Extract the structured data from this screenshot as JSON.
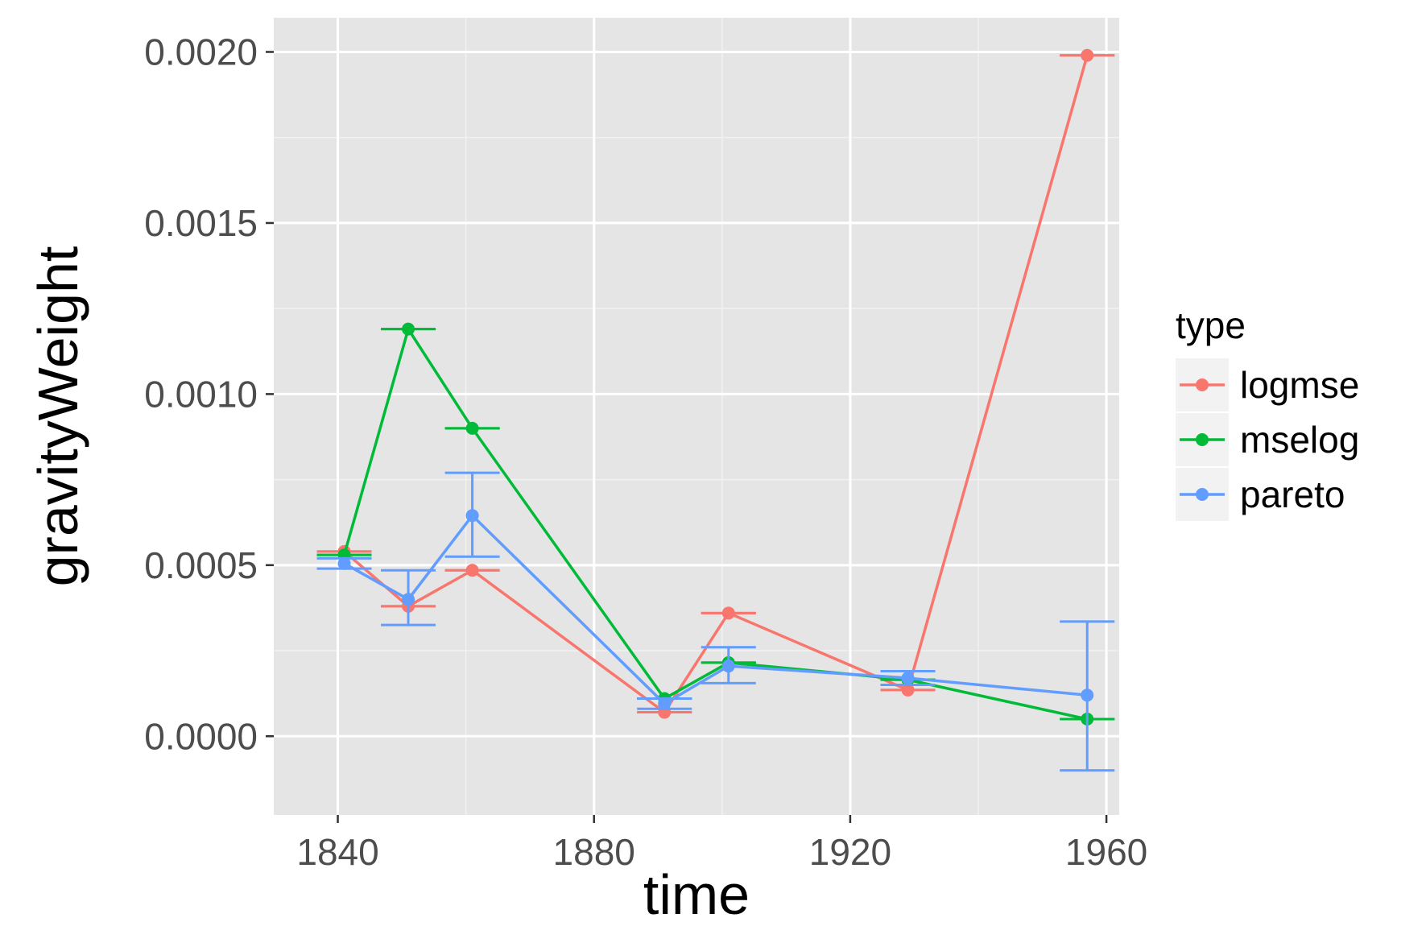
{
  "chart_data": {
    "type": "line",
    "xlabel": "time",
    "ylabel": "gravityWeight",
    "xlim": [
      1830,
      1962
    ],
    "ylim": [
      -0.00023,
      0.0021
    ],
    "x_ticks": [
      1840,
      1880,
      1920,
      1960
    ],
    "x_tick_labels": [
      "1840",
      "1880",
      "1920",
      "1960"
    ],
    "x_minor_ticks": [
      1860,
      1900,
      1940
    ],
    "y_ticks": [
      0.0,
      0.0005,
      0.001,
      0.0015,
      0.002
    ],
    "y_tick_labels": [
      "0.0000",
      "0.0005",
      "0.0010",
      "0.0015",
      "0.0020"
    ],
    "y_minor_ticks": [
      0.00025,
      0.00075,
      0.00125,
      0.00175
    ],
    "grid": true,
    "error_bars": true,
    "legend": {
      "title": "type",
      "position": "right"
    },
    "series": [
      {
        "name": "logmse",
        "color": "#F8766D",
        "x": [
          1841,
          1851,
          1861,
          1891,
          1901,
          1929,
          1957
        ],
        "y": [
          0.00054,
          0.00038,
          0.000485,
          7e-05,
          0.00036,
          0.000135,
          0.00199
        ],
        "ymin": [
          0.00054,
          0.00038,
          0.000485,
          7e-05,
          0.00036,
          0.000135,
          0.00199
        ],
        "ymax": [
          0.00054,
          0.00038,
          0.000485,
          7e-05,
          0.00036,
          0.000135,
          0.00199
        ]
      },
      {
        "name": "mselog",
        "color": "#00BA38",
        "x": [
          1841,
          1851,
          1861,
          1891,
          1901,
          1929,
          1957
        ],
        "y": [
          0.00053,
          0.00119,
          0.0009,
          0.00011,
          0.000215,
          0.000165,
          5e-05
        ],
        "ymin": [
          0.00053,
          0.00119,
          0.0009,
          0.00011,
          0.000215,
          0.000165,
          5e-05
        ],
        "ymax": [
          0.00053,
          0.00119,
          0.0009,
          0.00011,
          0.000215,
          0.000165,
          5e-05
        ]
      },
      {
        "name": "pareto",
        "color": "#619CFF",
        "x": [
          1841,
          1851,
          1861,
          1891,
          1901,
          1929,
          1957
        ],
        "y": [
          0.000505,
          0.0004,
          0.000645,
          9.5e-05,
          0.000205,
          0.00017,
          0.00012
        ],
        "ymin": [
          0.00049,
          0.000325,
          0.000525,
          8e-05,
          0.000155,
          0.00015,
          -0.0001
        ],
        "ymax": [
          0.00052,
          0.000485,
          0.00077,
          0.00011,
          0.00026,
          0.00019,
          0.000335
        ]
      }
    ]
  }
}
